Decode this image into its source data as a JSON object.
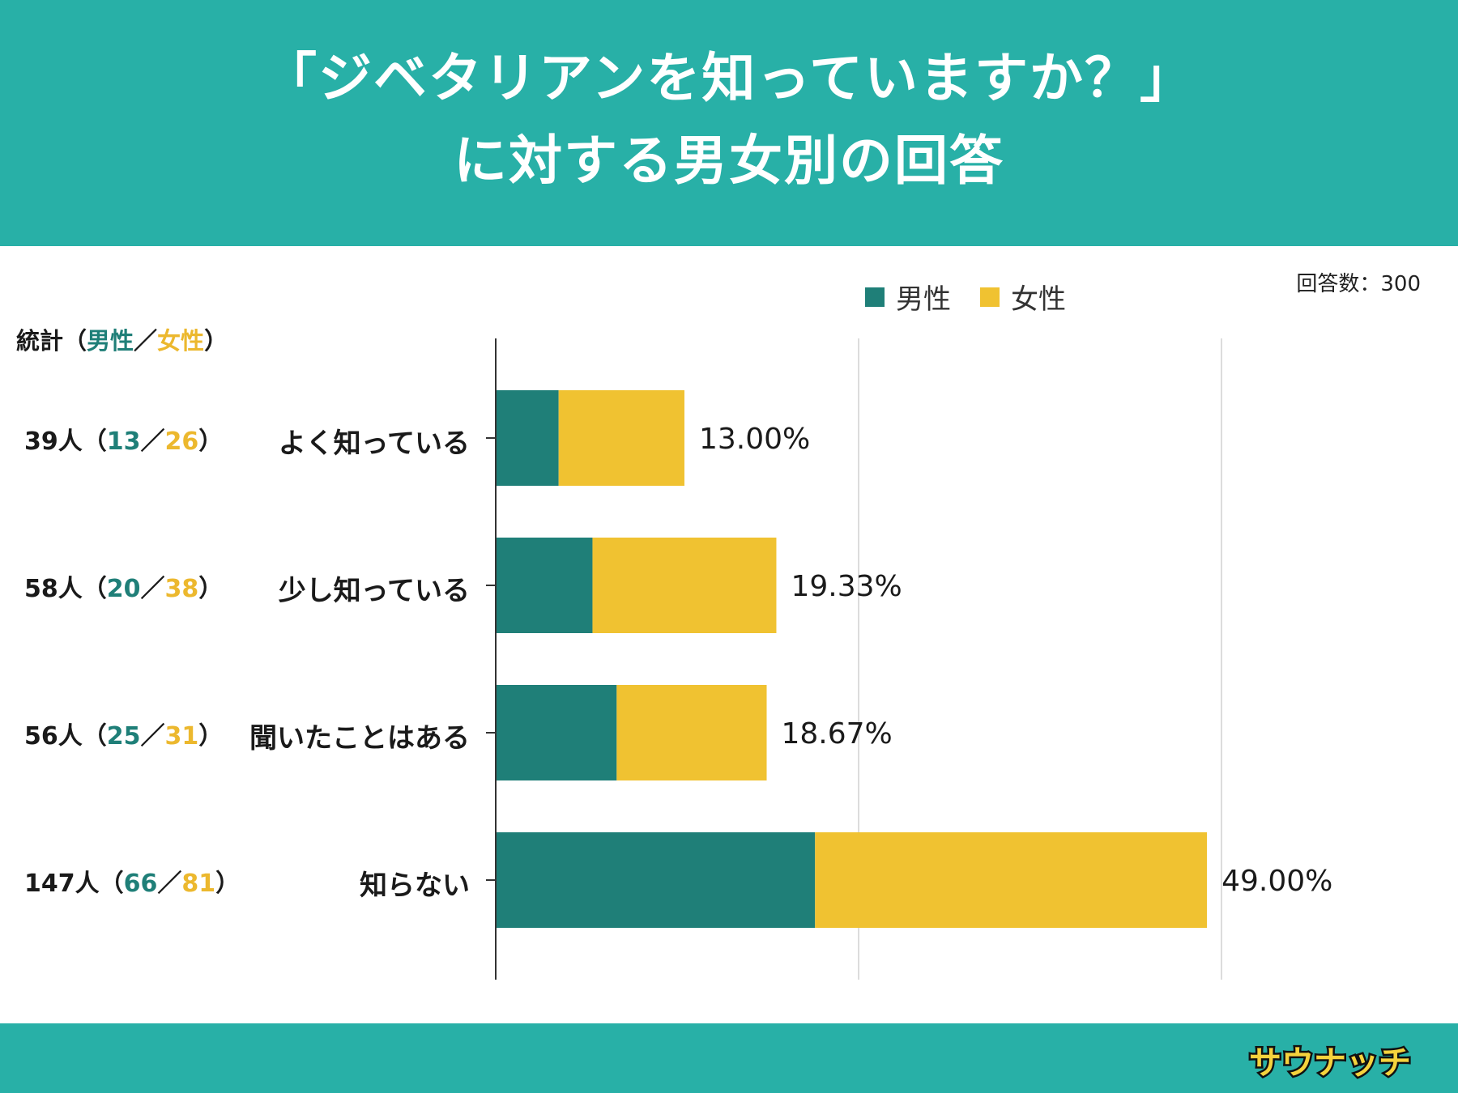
{
  "header": {
    "title_line1": "「ジベタリアンを知っていますか？」",
    "title_line2": "に対する男女別の回答"
  },
  "respondents": "回答数：300",
  "stats_header": {
    "prefix": "統計（",
    "male": "男性",
    "sep": "／",
    "female": "女性",
    "suffix": "）"
  },
  "stats": [
    {
      "total": "39人",
      "male": "13",
      "female": "26"
    },
    {
      "total": "58人",
      "male": "20",
      "female": "38"
    },
    {
      "total": "56人",
      "male": "25",
      "female": "31"
    },
    {
      "total": "147人",
      "male": "66",
      "female": "81"
    }
  ],
  "brand": {
    "name": "サウナッチ"
  },
  "colors": {
    "header": "#28b0a7",
    "male": "#1f7f78",
    "female": "#f0c231",
    "grid": "#dcdcdc"
  },
  "chart_data": {
    "type": "bar",
    "orientation": "horizontal",
    "stacked": true,
    "categories": [
      "よく知っている",
      "少し知っている",
      "聞いたことはある",
      "知らない"
    ],
    "series": [
      {
        "name": "男性",
        "values": [
          13,
          20,
          25,
          66
        ]
      },
      {
        "name": "女性",
        "values": [
          26,
          38,
          31,
          81
        ]
      }
    ],
    "data_labels": [
      "13.00%",
      "19.33%",
      "18.67%",
      "49.00%"
    ],
    "xlim": [
      0,
      150
    ],
    "gridlines": [
      75,
      150
    ],
    "legend": "top-right",
    "total": 300
  }
}
